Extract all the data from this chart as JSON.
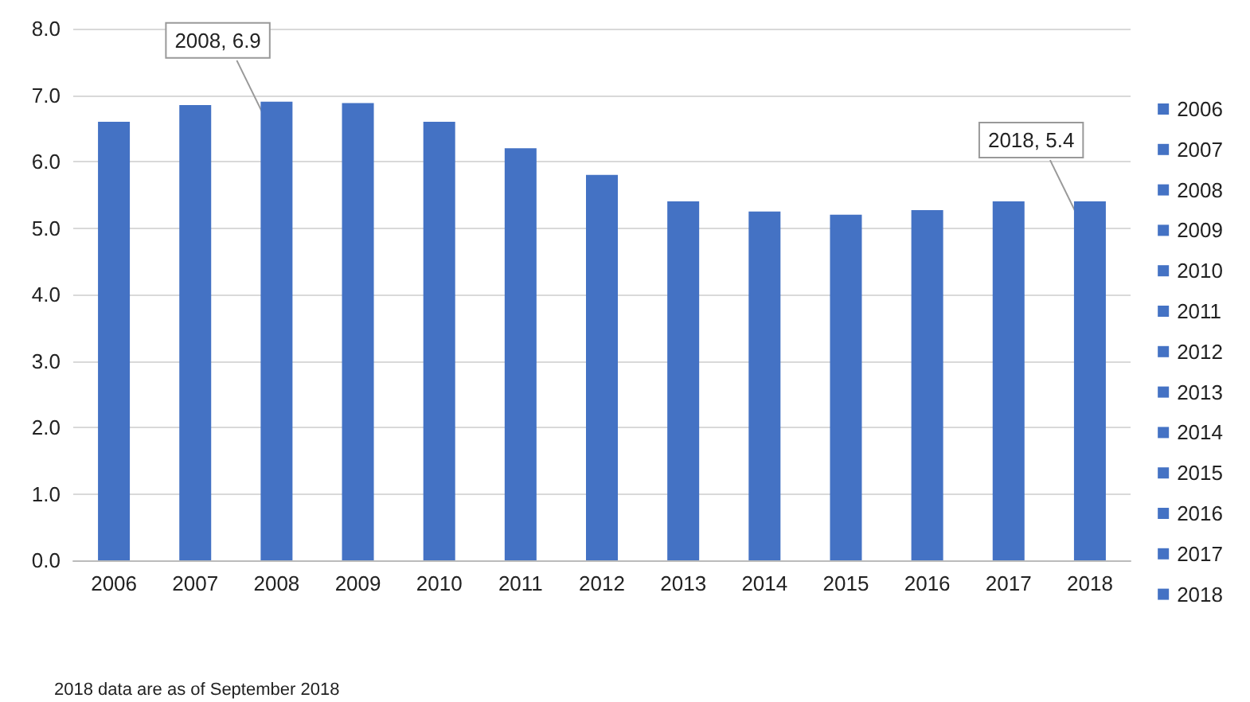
{
  "chart_data": {
    "type": "bar",
    "categories": [
      "2006",
      "2007",
      "2008",
      "2009",
      "2010",
      "2011",
      "2012",
      "2013",
      "2014",
      "2015",
      "2016",
      "2017",
      "2018"
    ],
    "stacked": true,
    "series": [
      {
        "name": "2006",
        "color": "#4472c4",
        "values": [
          6.6,
          null,
          null,
          null,
          null,
          null,
          null,
          null,
          null,
          null,
          null,
          null,
          null
        ]
      },
      {
        "name": "2007",
        "color": "#4472c4",
        "values": [
          null,
          6.85,
          null,
          null,
          null,
          null,
          null,
          null,
          null,
          null,
          null,
          null,
          null
        ]
      },
      {
        "name": "2008",
        "color": "#4472c4",
        "values": [
          null,
          null,
          6.9,
          null,
          null,
          null,
          null,
          null,
          null,
          null,
          null,
          null,
          null
        ]
      },
      {
        "name": "2009",
        "color": "#4472c4",
        "values": [
          null,
          null,
          null,
          6.88,
          null,
          null,
          null,
          null,
          null,
          null,
          null,
          null,
          null
        ]
      },
      {
        "name": "2010",
        "color": "#4472c4",
        "values": [
          null,
          null,
          null,
          null,
          6.6,
          null,
          null,
          null,
          null,
          null,
          null,
          null,
          null
        ]
      },
      {
        "name": "2011",
        "color": "#4472c4",
        "values": [
          null,
          null,
          null,
          null,
          null,
          6.2,
          null,
          null,
          null,
          null,
          null,
          null,
          null
        ]
      },
      {
        "name": "2012",
        "color": "#4472c4",
        "values": [
          null,
          null,
          null,
          null,
          null,
          null,
          5.8,
          null,
          null,
          null,
          null,
          null,
          null
        ]
      },
      {
        "name": "2013",
        "color": "#4472c4",
        "values": [
          null,
          null,
          null,
          null,
          null,
          null,
          null,
          5.4,
          null,
          null,
          null,
          null,
          null
        ]
      },
      {
        "name": "2014",
        "color": "#4472c4",
        "values": [
          null,
          null,
          null,
          null,
          null,
          null,
          null,
          null,
          5.25,
          null,
          null,
          null,
          null
        ]
      },
      {
        "name": "2015",
        "color": "#4472c4",
        "values": [
          null,
          null,
          null,
          null,
          null,
          null,
          null,
          null,
          null,
          5.2,
          null,
          null,
          null
        ]
      },
      {
        "name": "2016",
        "color": "#4472c4",
        "values": [
          null,
          null,
          null,
          null,
          null,
          null,
          null,
          null,
          null,
          null,
          5.27,
          null,
          null
        ]
      },
      {
        "name": "2017",
        "color": "#4472c4",
        "values": [
          null,
          null,
          null,
          null,
          null,
          null,
          null,
          null,
          null,
          null,
          null,
          5.4,
          null
        ]
      },
      {
        "name": "2018",
        "color": "#4472c4",
        "values": [
          null,
          null,
          null,
          null,
          null,
          null,
          null,
          null,
          null,
          null,
          null,
          null,
          5.4
        ]
      }
    ],
    "ylim": [
      0,
      8
    ],
    "yticks": [
      {
        "value": 0,
        "label": "0.0"
      },
      {
        "value": 1,
        "label": "1.0"
      },
      {
        "value": 2,
        "label": "2.0"
      },
      {
        "value": 3,
        "label": "3.0"
      },
      {
        "value": 4,
        "label": "4.0"
      },
      {
        "value": 5,
        "label": "5.0"
      },
      {
        "value": 6,
        "label": "6.0"
      },
      {
        "value": 7,
        "label": "7.0"
      },
      {
        "value": 8,
        "label": "8.0"
      }
    ],
    "grid": "y",
    "legend": "right",
    "annotations": [
      {
        "text": "2008, 6.9",
        "x": "2008",
        "y": 6.9
      },
      {
        "text": "2018, 5.4",
        "x": "2018",
        "y": 5.4
      },
      "2018 data are as of September 2018"
    ]
  }
}
